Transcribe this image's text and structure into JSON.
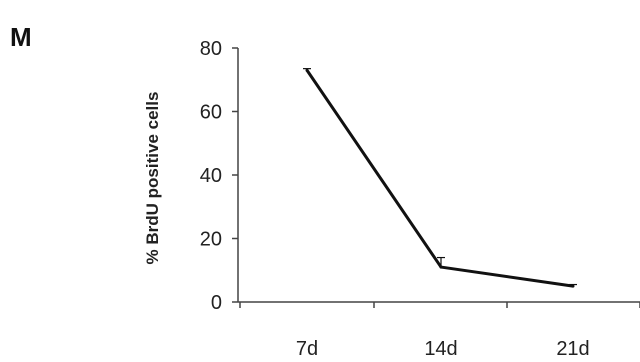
{
  "panel_label": "M",
  "chart_data": {
    "type": "line",
    "title": "",
    "xlabel": "",
    "ylabel": "% BrdU positive cells",
    "categories": [
      "7d",
      "14d",
      "21d"
    ],
    "series": [
      {
        "values": [
          73,
          11,
          5
        ],
        "errors": [
          0.5,
          3,
          0.5
        ],
        "color": "#111111"
      }
    ],
    "ylim": [
      0,
      80
    ],
    "yticks": [
      0,
      20,
      40,
      60,
      80
    ],
    "grid": false,
    "legend": "none"
  }
}
